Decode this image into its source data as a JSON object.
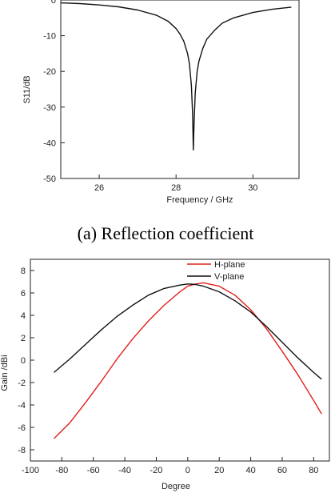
{
  "caption_a": "(a) Reflection coefficient",
  "chart_data": [
    {
      "type": "line",
      "xlabel": "Frequency / GHz",
      "ylabel": "S11/dB",
      "xlim": [
        25,
        31.2
      ],
      "ylim": [
        -50,
        0
      ],
      "xticks": [
        26,
        28,
        30
      ],
      "yticks": [
        0,
        -10,
        -20,
        -30,
        -40,
        -50
      ],
      "series": [
        {
          "color": "#111111",
          "x": [
            25.0,
            25.5,
            26.0,
            26.5,
            27.0,
            27.5,
            27.8,
            28.0,
            28.1,
            28.2,
            28.3,
            28.35,
            28.4,
            28.43,
            28.45,
            28.47,
            28.5,
            28.55,
            28.6,
            28.7,
            28.8,
            29.0,
            29.2,
            29.5,
            30.0,
            30.5,
            31.0
          ],
          "y": [
            -0.8,
            -1.0,
            -1.4,
            -1.9,
            -2.8,
            -4.3,
            -6.0,
            -8.0,
            -9.5,
            -11.5,
            -15.0,
            -18.0,
            -24.0,
            -32.0,
            -42.0,
            -34.0,
            -26.0,
            -20.0,
            -17.0,
            -13.5,
            -11.0,
            -8.5,
            -6.5,
            -5.0,
            -3.5,
            -2.6,
            -2.0
          ]
        }
      ]
    },
    {
      "type": "line",
      "xlabel": "Degree",
      "ylabel": "Gain /dBi",
      "xlim": [
        -100,
        90
      ],
      "ylim": [
        -9,
        9
      ],
      "xticks": [
        -100,
        -80,
        -60,
        -40,
        -20,
        0,
        20,
        40,
        60,
        80
      ],
      "yticks": [
        8,
        6,
        4,
        2,
        0,
        -2,
        -4,
        -6,
        -8
      ],
      "legend_position": "top-right",
      "series": [
        {
          "name": "H-plane",
          "color": "#e0201c",
          "x": [
            -85,
            -75,
            -65,
            -55,
            -45,
            -35,
            -25,
            -15,
            -5,
            0,
            5,
            10,
            20,
            30,
            40,
            50,
            60,
            70,
            80,
            85
          ],
          "y": [
            -7.0,
            -5.6,
            -3.8,
            -1.9,
            0.1,
            1.9,
            3.5,
            4.9,
            6.1,
            6.6,
            6.8,
            6.9,
            6.6,
            5.8,
            4.5,
            2.8,
            0.8,
            -1.3,
            -3.6,
            -4.8
          ]
        },
        {
          "name": "V-plane",
          "color": "#111111",
          "x": [
            -85,
            -75,
            -65,
            -55,
            -45,
            -35,
            -25,
            -15,
            -5,
            0,
            5,
            10,
            20,
            30,
            40,
            50,
            60,
            70,
            80,
            85
          ],
          "y": [
            -1.1,
            0.1,
            1.4,
            2.7,
            3.9,
            4.9,
            5.8,
            6.4,
            6.7,
            6.8,
            6.75,
            6.6,
            6.1,
            5.3,
            4.3,
            3.0,
            1.6,
            0.2,
            -1.1,
            -1.7
          ]
        }
      ]
    }
  ]
}
